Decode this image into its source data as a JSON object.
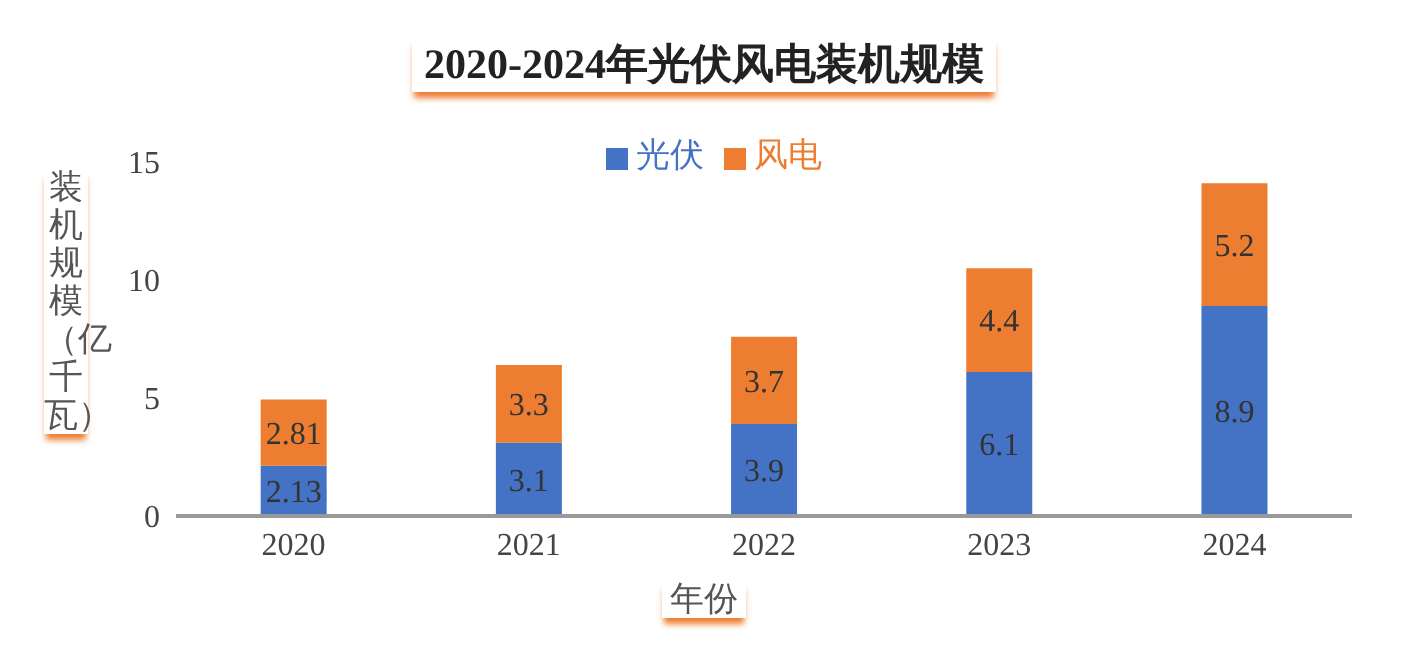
{
  "chart_data": {
    "type": "bar",
    "title": "2020-2024年光伏风电装机规模",
    "xlabel": "年份",
    "ylabel": "装机规模（亿千瓦）",
    "categories": [
      "2020",
      "2021",
      "2022",
      "2023",
      "2024"
    ],
    "stacked": true,
    "series": [
      {
        "name": "光伏",
        "color": "#4472c4",
        "values": [
          2.13,
          3.1,
          3.9,
          6.1,
          8.9
        ]
      },
      {
        "name": "风电",
        "color": "#ed7d31",
        "values": [
          2.81,
          3.3,
          3.7,
          4.4,
          5.2
        ]
      }
    ],
    "ylim": [
      0,
      15
    ],
    "yticks": [
      0,
      5,
      10,
      15
    ],
    "grid": false,
    "legend": "top",
    "data_labels": true
  }
}
